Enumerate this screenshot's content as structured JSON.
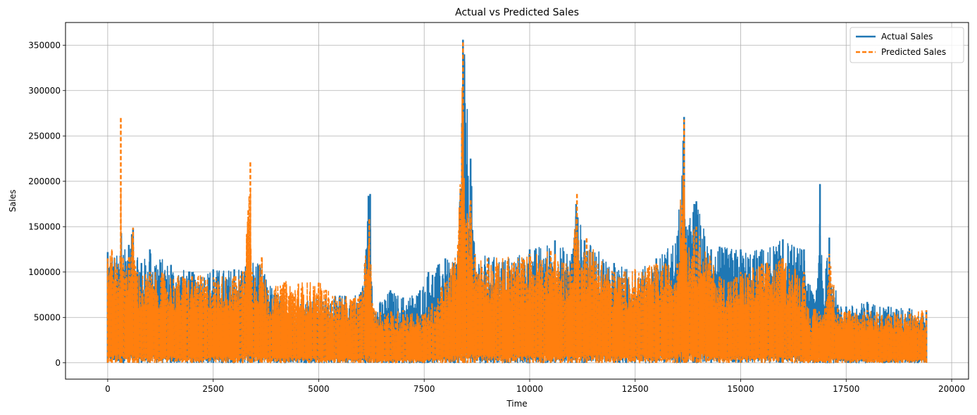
{
  "chart_data": {
    "type": "line",
    "title": "Actual vs Predicted Sales",
    "xlabel": "Time",
    "ylabel": "Sales",
    "xlim": [
      -1000,
      20400
    ],
    "ylim": [
      -18000,
      375000
    ],
    "xticks": [
      0,
      2500,
      5000,
      7500,
      10000,
      12500,
      15000,
      17500,
      20000
    ],
    "yticks": [
      0,
      50000,
      100000,
      150000,
      200000,
      250000,
      300000,
      350000
    ],
    "grid": true,
    "legend_position": "top-right",
    "series": [
      {
        "name": "Actual Sales",
        "color": "#1f77b4",
        "style": "solid",
        "envelope": [
          [
            0,
            122000
          ],
          [
            300,
            118000
          ],
          [
            320,
            143000
          ],
          [
            500,
            130000
          ],
          [
            600,
            148000
          ],
          [
            800,
            110000
          ],
          [
            1000,
            125000
          ],
          [
            1500,
            108000
          ],
          [
            2000,
            100000
          ],
          [
            2500,
            103000
          ],
          [
            3000,
            103000
          ],
          [
            3380,
            115000
          ],
          [
            3600,
            108000
          ],
          [
            4000,
            75000
          ],
          [
            5000,
            72000
          ],
          [
            5500,
            74000
          ],
          [
            6000,
            78000
          ],
          [
            6100,
            110000
          ],
          [
            6180,
            184000
          ],
          [
            6220,
            186000
          ],
          [
            6300,
            60000
          ],
          [
            6700,
            80000
          ],
          [
            7000,
            72000
          ],
          [
            7400,
            80000
          ],
          [
            7600,
            100000
          ],
          [
            8000,
            115000
          ],
          [
            8200,
            110000
          ],
          [
            8300,
            120000
          ],
          [
            8420,
            356000
          ],
          [
            8450,
            340000
          ],
          [
            8600,
            225000
          ],
          [
            8700,
            120000
          ],
          [
            9500,
            115000
          ],
          [
            10000,
            125000
          ],
          [
            10600,
            135000
          ],
          [
            11000,
            120000
          ],
          [
            11100,
            175000
          ],
          [
            11300,
            135000
          ],
          [
            12000,
            110000
          ],
          [
            12500,
            100000
          ],
          [
            13000,
            115000
          ],
          [
            13500,
            140000
          ],
          [
            13660,
            271000
          ],
          [
            13700,
            150000
          ],
          [
            13900,
            175000
          ],
          [
            13950,
            178000
          ],
          [
            14300,
            125000
          ],
          [
            14500,
            128000
          ],
          [
            15000,
            125000
          ],
          [
            15500,
            125000
          ],
          [
            16000,
            136000
          ],
          [
            16500,
            125000
          ],
          [
            16600,
            87000
          ],
          [
            16800,
            80000
          ],
          [
            16880,
            197000
          ],
          [
            16950,
            80000
          ],
          [
            17100,
            138000
          ],
          [
            17300,
            64000
          ],
          [
            17500,
            62000
          ],
          [
            18000,
            67000
          ],
          [
            18500,
            62000
          ],
          [
            19000,
            60000
          ],
          [
            19400,
            58000
          ]
        ]
      },
      {
        "name": "Predicted Sales",
        "color": "#ff7f0e",
        "style": "dashed",
        "envelope": [
          [
            0,
            115000
          ],
          [
            100,
            125000
          ],
          [
            300,
            117000
          ],
          [
            310,
            272000
          ],
          [
            330,
            118000
          ],
          [
            500,
            118000
          ],
          [
            600,
            149000
          ],
          [
            700,
            100000
          ],
          [
            1000,
            100000
          ],
          [
            2000,
            97000
          ],
          [
            3000,
            97000
          ],
          [
            3200,
            100000
          ],
          [
            3380,
            223000
          ],
          [
            3420,
            100000
          ],
          [
            3650,
            118000
          ],
          [
            3800,
            80000
          ],
          [
            4200,
            90000
          ],
          [
            5000,
            90000
          ],
          [
            5500,
            72000
          ],
          [
            6000,
            75000
          ],
          [
            6200,
            160000
          ],
          [
            6300,
            60000
          ],
          [
            7000,
            58000
          ],
          [
            7500,
            55000
          ],
          [
            8000,
            90000
          ],
          [
            8300,
            130000
          ],
          [
            8420,
            353000
          ],
          [
            8460,
            160000
          ],
          [
            8600,
            180000
          ],
          [
            8700,
            120000
          ],
          [
            9000,
            115000
          ],
          [
            10000,
            120000
          ],
          [
            10500,
            125000
          ],
          [
            11000,
            110000
          ],
          [
            11120,
            188000
          ],
          [
            11180,
            110000
          ],
          [
            11350,
            138000
          ],
          [
            12000,
            100000
          ],
          [
            13000,
            110000
          ],
          [
            13500,
            110000
          ],
          [
            13660,
            268000
          ],
          [
            13700,
            140000
          ],
          [
            13950,
            150000
          ],
          [
            14500,
            95000
          ],
          [
            15000,
            100000
          ],
          [
            15500,
            110000
          ],
          [
            16000,
            115000
          ],
          [
            16500,
            100000
          ],
          [
            16600,
            60000
          ],
          [
            17000,
            60000
          ],
          [
            17100,
            120000
          ],
          [
            17300,
            60000
          ],
          [
            18000,
            58000
          ],
          [
            18500,
            55000
          ],
          [
            19000,
            57000
          ],
          [
            19400,
            58000
          ]
        ]
      }
    ]
  }
}
